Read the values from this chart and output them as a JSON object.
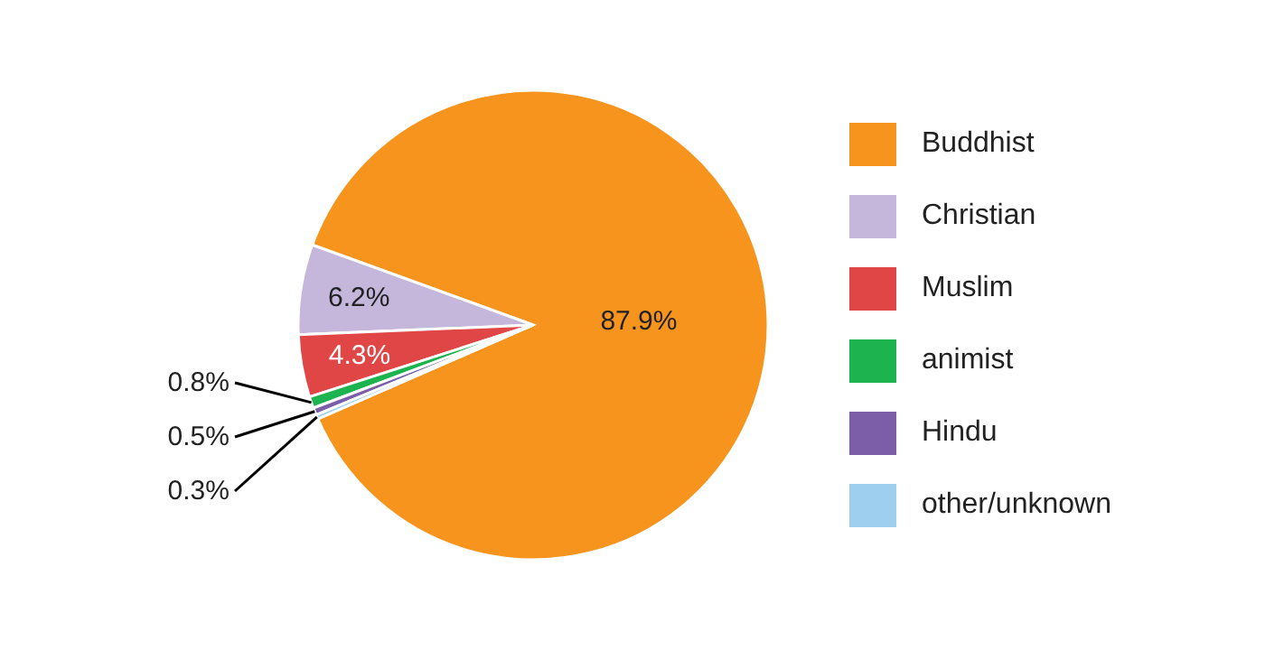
{
  "chart_data": {
    "type": "pie",
    "categories": [
      "Buddhist",
      "Christian",
      "Muslim",
      "animist",
      "Hindu",
      "other/unknown"
    ],
    "values": [
      87.9,
      6.2,
      4.3,
      0.8,
      0.5,
      0.3
    ],
    "value_labels": [
      "87.9%",
      "6.2%",
      "4.3%",
      "0.8%",
      "0.5%",
      "0.3%"
    ],
    "colors": [
      "#f7941d",
      "#c5b6dc",
      "#e04646",
      "#1db34f",
      "#7b5ea7",
      "#9fcfee"
    ],
    "legend": "right"
  }
}
